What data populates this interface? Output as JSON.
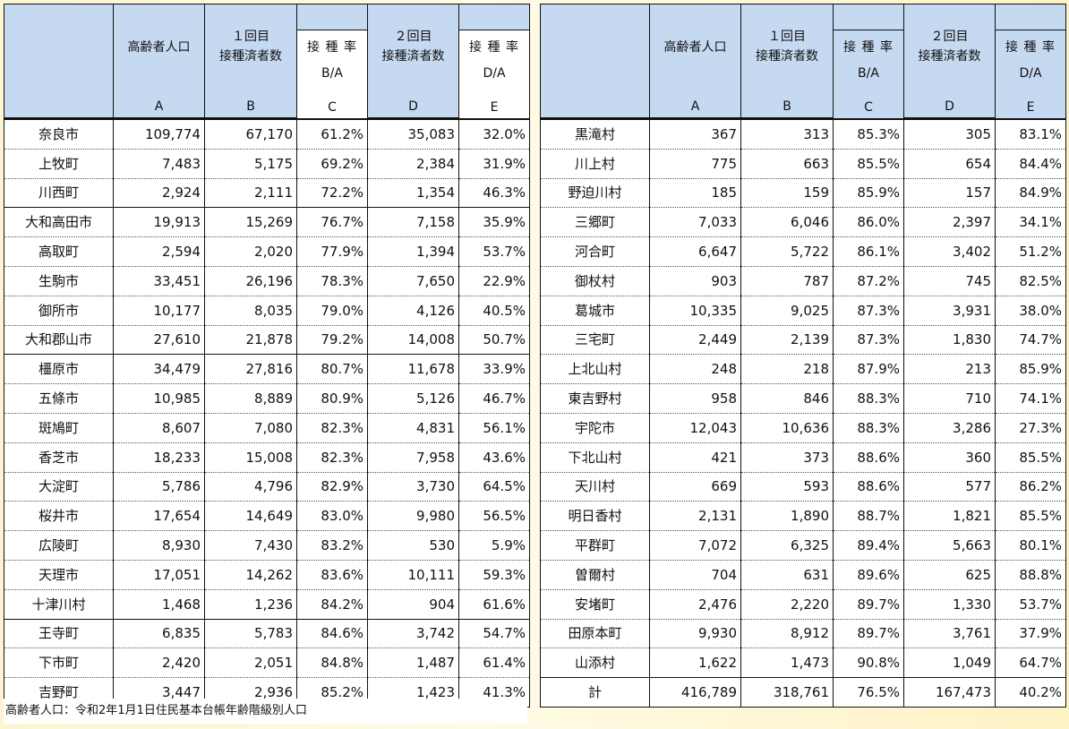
{
  "header": {
    "col_name": "",
    "col_a_label": "高齢者人口",
    "col_a_letter": "A",
    "col_b_label_1": "１回目",
    "col_b_label_2": "接種済者数",
    "col_b_letter": "B",
    "col_c_label": "接 種 率",
    "col_c_formula": "B/A",
    "col_c_letter": "C",
    "col_d_label_1": "２回目",
    "col_d_label_2": "接種済者数",
    "col_d_letter": "D",
    "col_e_label": "接 種 率",
    "col_e_formula": "D/A",
    "col_e_letter": "E"
  },
  "left_rows": [
    {
      "name": "奈良市",
      "a": "109,774",
      "b": "67,170",
      "c": "61.2%",
      "d": "35,083",
      "e": "32.0%"
    },
    {
      "name": "上牧町",
      "a": "7,483",
      "b": "5,175",
      "c": "69.2%",
      "d": "2,384",
      "e": "31.9%"
    },
    {
      "name": "川西町",
      "a": "2,924",
      "b": "2,111",
      "c": "72.2%",
      "d": "1,354",
      "e": "46.3%"
    },
    {
      "name": "大和高田市",
      "a": "19,913",
      "b": "15,269",
      "c": "76.7%",
      "d": "7,158",
      "e": "35.9%"
    },
    {
      "name": "高取町",
      "a": "2,594",
      "b": "2,020",
      "c": "77.9%",
      "d": "1,394",
      "e": "53.7%"
    },
    {
      "name": "生駒市",
      "a": "33,451",
      "b": "26,196",
      "c": "78.3%",
      "d": "7,650",
      "e": "22.9%"
    },
    {
      "name": "御所市",
      "a": "10,177",
      "b": "8,035",
      "c": "79.0%",
      "d": "4,126",
      "e": "40.5%"
    },
    {
      "name": "大和郡山市",
      "a": "27,610",
      "b": "21,878",
      "c": "79.2%",
      "d": "14,008",
      "e": "50.7%"
    },
    {
      "name": "橿原市",
      "a": "34,479",
      "b": "27,816",
      "c": "80.7%",
      "d": "11,678",
      "e": "33.9%"
    },
    {
      "name": "五條市",
      "a": "10,985",
      "b": "8,889",
      "c": "80.9%",
      "d": "5,126",
      "e": "46.7%"
    },
    {
      "name": "斑鳩町",
      "a": "8,607",
      "b": "7,080",
      "c": "82.3%",
      "d": "4,831",
      "e": "56.1%"
    },
    {
      "name": "香芝市",
      "a": "18,233",
      "b": "15,008",
      "c": "82.3%",
      "d": "7,958",
      "e": "43.6%"
    },
    {
      "name": "大淀町",
      "a": "5,786",
      "b": "4,796",
      "c": "82.9%",
      "d": "3,730",
      "e": "64.5%"
    },
    {
      "name": "桜井市",
      "a": "17,654",
      "b": "14,649",
      "c": "83.0%",
      "d": "9,980",
      "e": "56.5%"
    },
    {
      "name": "広陵町",
      "a": "8,930",
      "b": "7,430",
      "c": "83.2%",
      "d": "530",
      "e": "5.9%"
    },
    {
      "name": "天理市",
      "a": "17,051",
      "b": "14,262",
      "c": "83.6%",
      "d": "10,111",
      "e": "59.3%"
    },
    {
      "name": "十津川村",
      "a": "1,468",
      "b": "1,236",
      "c": "84.2%",
      "d": "904",
      "e": "61.6%"
    },
    {
      "name": "王寺町",
      "a": "6,835",
      "b": "5,783",
      "c": "84.6%",
      "d": "3,742",
      "e": "54.7%"
    },
    {
      "name": "下市町",
      "a": "2,420",
      "b": "2,051",
      "c": "84.8%",
      "d": "1,487",
      "e": "61.4%"
    },
    {
      "name": "吉野町",
      "a": "3,447",
      "b": "2,936",
      "c": "85.2%",
      "d": "1,423",
      "e": "41.3%"
    }
  ],
  "right_rows": [
    {
      "name": "黒滝村",
      "a": "367",
      "b": "313",
      "c": "85.3%",
      "d": "305",
      "e": "83.1%"
    },
    {
      "name": "川上村",
      "a": "775",
      "b": "663",
      "c": "85.5%",
      "d": "654",
      "e": "84.4%"
    },
    {
      "name": "野迫川村",
      "a": "185",
      "b": "159",
      "c": "85.9%",
      "d": "157",
      "e": "84.9%"
    },
    {
      "name": "三郷町",
      "a": "7,033",
      "b": "6,046",
      "c": "86.0%",
      "d": "2,397",
      "e": "34.1%"
    },
    {
      "name": "河合町",
      "a": "6,647",
      "b": "5,722",
      "c": "86.1%",
      "d": "3,402",
      "e": "51.2%"
    },
    {
      "name": "御杖村",
      "a": "903",
      "b": "787",
      "c": "87.2%",
      "d": "745",
      "e": "82.5%"
    },
    {
      "name": "葛城市",
      "a": "10,335",
      "b": "9,025",
      "c": "87.3%",
      "d": "3,931",
      "e": "38.0%"
    },
    {
      "name": "三宅町",
      "a": "2,449",
      "b": "2,139",
      "c": "87.3%",
      "d": "1,830",
      "e": "74.7%"
    },
    {
      "name": "上北山村",
      "a": "248",
      "b": "218",
      "c": "87.9%",
      "d": "213",
      "e": "85.9%"
    },
    {
      "name": "東吉野村",
      "a": "958",
      "b": "846",
      "c": "88.3%",
      "d": "710",
      "e": "74.1%"
    },
    {
      "name": "宇陀市",
      "a": "12,043",
      "b": "10,636",
      "c": "88.3%",
      "d": "3,286",
      "e": "27.3%"
    },
    {
      "name": "下北山村",
      "a": "421",
      "b": "373",
      "c": "88.6%",
      "d": "360",
      "e": "85.5%"
    },
    {
      "name": "天川村",
      "a": "669",
      "b": "593",
      "c": "88.6%",
      "d": "577",
      "e": "86.2%"
    },
    {
      "name": "明日香村",
      "a": "2,131",
      "b": "1,890",
      "c": "88.7%",
      "d": "1,821",
      "e": "85.5%"
    },
    {
      "name": "平群町",
      "a": "7,072",
      "b": "6,325",
      "c": "89.4%",
      "d": "5,663",
      "e": "80.1%"
    },
    {
      "name": "曽爾村",
      "a": "704",
      "b": "631",
      "c": "89.6%",
      "d": "625",
      "e": "88.8%"
    },
    {
      "name": "安堵町",
      "a": "2,476",
      "b": "2,220",
      "c": "89.7%",
      "d": "1,330",
      "e": "53.7%"
    },
    {
      "name": "田原本町",
      "a": "9,930",
      "b": "8,912",
      "c": "89.7%",
      "d": "3,761",
      "e": "37.9%"
    },
    {
      "name": "山添村",
      "a": "1,622",
      "b": "1,473",
      "c": "90.8%",
      "d": "1,049",
      "e": "64.7%"
    },
    {
      "name": "計",
      "a": "416,789",
      "b": "318,761",
      "c": "76.5%",
      "d": "167,473",
      "e": "40.2%"
    }
  ],
  "footnote": "高齢者人口：令和2年1月1日住民基本台帳年齢階級別人口"
}
